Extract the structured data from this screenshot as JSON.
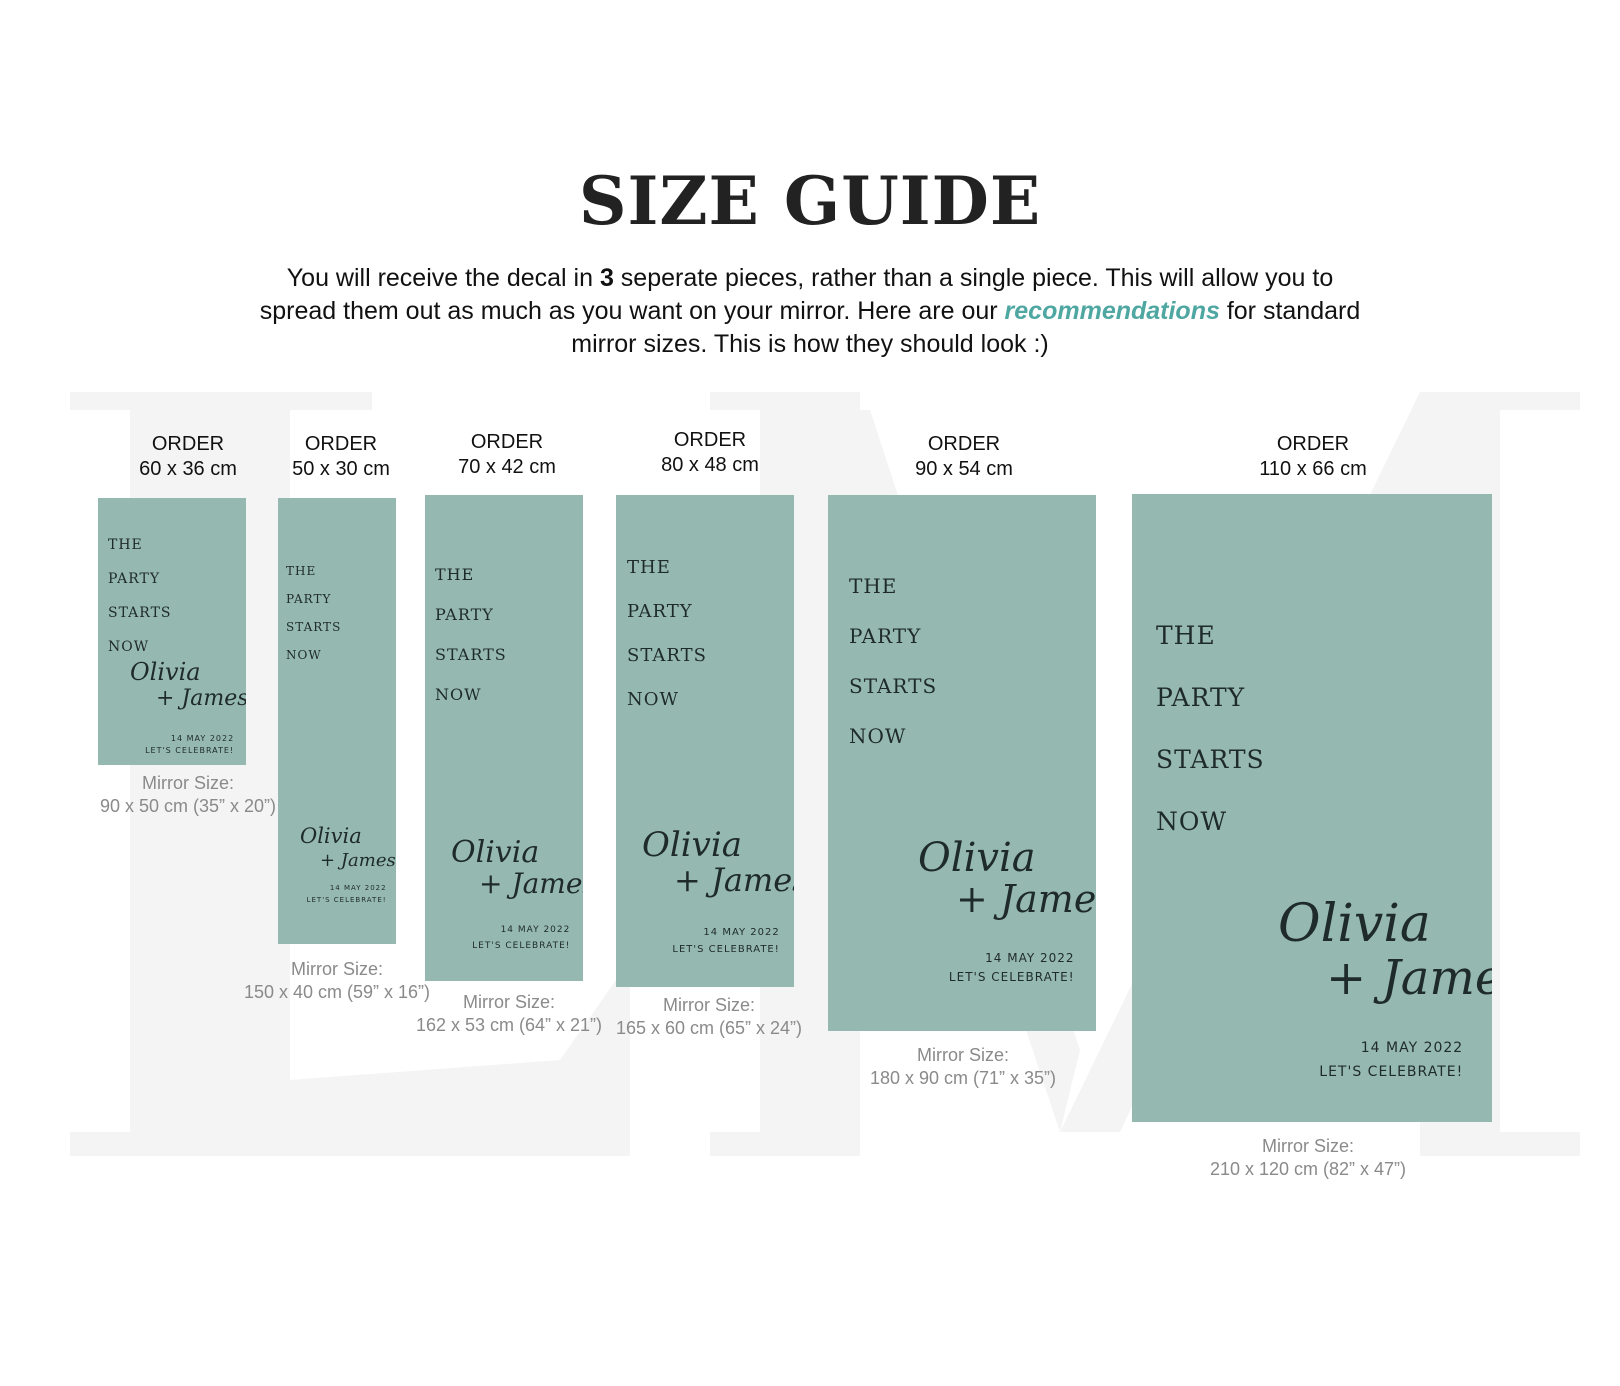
{
  "header": {
    "title": "SIZE GUIDE",
    "intro_part1": "You will receive the decal in ",
    "intro_bold": "3",
    "intro_part2": " seperate pieces, rather than a single piece. This will allow you to spread them out as much as you want on your mirror. Here are our ",
    "intro_accent": "recommendations",
    "intro_part3": " for standard mirror sizes. This is how they should look :)"
  },
  "colors": {
    "panel": "#95b9b1",
    "accent": "#4fa7a2",
    "caption": "#8a8a8a",
    "watermark": "#f4f4f4"
  },
  "watermark": {
    "letters": "LM"
  },
  "decal": {
    "line1": "THE",
    "line2": "PARTY",
    "line3": "STARTS",
    "line4": "NOW",
    "name1": "Olivia",
    "name2": "+ James",
    "date": "14 MAY 2022",
    "celebrate": "LET'S CELEBRATE!"
  },
  "sizes": [
    {
      "order_label": "ORDER",
      "order_size": "60 x 36 cm",
      "mirror_label": "Mirror Size:",
      "mirror_size": "90 x 50 cm (35” x 20”)"
    },
    {
      "order_label": "ORDER",
      "order_size": "50 x 30 cm",
      "mirror_label": "Mirror Size:",
      "mirror_size": "150 x 40 cm (59” x 16”)"
    },
    {
      "order_label": "ORDER",
      "order_size": "70 x 42 cm",
      "mirror_label": "Mirror Size:",
      "mirror_size": "162 x 53 cm (64” x 21”)"
    },
    {
      "order_label": "ORDER",
      "order_size": "80 x 48 cm",
      "mirror_label": "Mirror Size:",
      "mirror_size": "165 x 60 cm (65” x 24”)"
    },
    {
      "order_label": "ORDER",
      "order_size": "90 x 54 cm",
      "mirror_label": "Mirror Size:",
      "mirror_size": "180 x 90 cm (71” x 35”)"
    },
    {
      "order_label": "ORDER",
      "order_size": "110 x 66 cm",
      "mirror_label": "Mirror Size:",
      "mirror_size": "210 x 120 cm (82” x 47”)"
    }
  ]
}
